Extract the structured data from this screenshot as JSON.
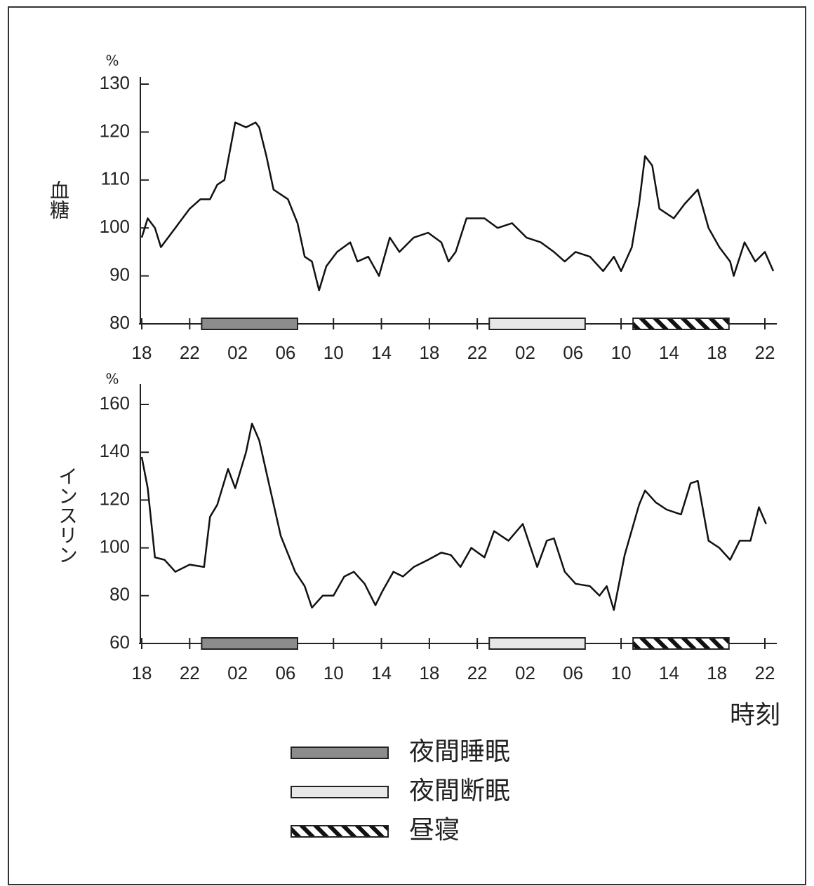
{
  "periods": [
    {
      "name": "夜間睡眠",
      "start": 5,
      "end": 13,
      "style": "dark"
    },
    {
      "name": "夜間断眠",
      "start": 29,
      "end": 37,
      "style": "light"
    },
    {
      "name": "昼寝",
      "start": 41,
      "end": 49,
      "style": "hatch"
    }
  ],
  "chart_data": [
    {
      "type": "line",
      "y_label": "血糖",
      "y_unit": "%",
      "color": "#111111",
      "xlim": [
        0,
        53
      ],
      "ylim": [
        80,
        130
      ],
      "yticks": [
        80,
        90,
        100,
        110,
        120,
        130
      ],
      "xticks": [
        {
          "value": 0,
          "label": "18"
        },
        {
          "value": 4,
          "label": "22"
        },
        {
          "value": 8,
          "label": "02"
        },
        {
          "value": 12,
          "label": "06"
        },
        {
          "value": 16,
          "label": "10"
        },
        {
          "value": 20,
          "label": "14"
        },
        {
          "value": 24,
          "label": "18"
        },
        {
          "value": 28,
          "label": "22"
        },
        {
          "value": 32,
          "label": "02"
        },
        {
          "value": 36,
          "label": "06"
        },
        {
          "value": 40,
          "label": "10"
        },
        {
          "value": 44,
          "label": "14"
        },
        {
          "value": 48,
          "label": "18"
        },
        {
          "value": 52,
          "label": "22"
        }
      ],
      "x": [
        0,
        0.5,
        1.1,
        1.6,
        2.8,
        4,
        4.9,
        5.7,
        6.3,
        6.9,
        7.8,
        8.7,
        9.5,
        9.8,
        10.4,
        11,
        12.2,
        13,
        13.6,
        14.2,
        14.8,
        15.4,
        16.3,
        17.4,
        18,
        18.9,
        19.8,
        20.7,
        21.5,
        22.7,
        23.9,
        25,
        25.6,
        26.2,
        27.1,
        28.6,
        29.7,
        30.9,
        32.1,
        33.3,
        34.4,
        35.3,
        36.2,
        37.4,
        38.5,
        39.4,
        40,
        40.9,
        41.5,
        42,
        42.6,
        43.2,
        44.4,
        45.3,
        46.4,
        47.3,
        48.2,
        49.1,
        49.4,
        50.3,
        51.2,
        52,
        52.7
      ],
      "values": [
        98,
        102,
        100,
        96,
        100,
        104,
        106,
        106,
        109,
        110,
        122,
        121,
        122,
        121,
        115,
        108,
        106,
        101,
        94,
        93,
        87,
        92,
        95,
        97,
        93,
        94,
        90,
        98,
        95,
        98,
        99,
        97,
        93,
        95,
        102,
        102,
        100,
        101,
        98,
        97,
        95,
        93,
        95,
        94,
        91,
        94,
        91,
        96,
        105,
        115,
        113,
        104,
        102,
        105,
        108,
        100,
        96,
        93,
        90,
        97,
        93,
        95,
        91
      ]
    },
    {
      "type": "line",
      "y_label": "インスリン",
      "y_unit": "%",
      "x_label": "時刻",
      "color": "#111111",
      "xlim": [
        0,
        53
      ],
      "ylim": [
        60,
        160
      ],
      "yticks": [
        60,
        80,
        100,
        120,
        140,
        160
      ],
      "xticks": [
        {
          "value": 0,
          "label": "18"
        },
        {
          "value": 4,
          "label": "22"
        },
        {
          "value": 8,
          "label": "02"
        },
        {
          "value": 12,
          "label": "06"
        },
        {
          "value": 16,
          "label": "10"
        },
        {
          "value": 20,
          "label": "14"
        },
        {
          "value": 24,
          "label": "18"
        },
        {
          "value": 28,
          "label": "22"
        },
        {
          "value": 32,
          "label": "02"
        },
        {
          "value": 36,
          "label": "06"
        },
        {
          "value": 40,
          "label": "10"
        },
        {
          "value": 44,
          "label": "14"
        },
        {
          "value": 48,
          "label": "18"
        },
        {
          "value": 52,
          "label": "22"
        }
      ],
      "x": [
        0,
        0.5,
        1.1,
        1.9,
        2.8,
        4,
        5.2,
        5.7,
        6.3,
        7.2,
        7.8,
        8.7,
        9.2,
        9.8,
        10.7,
        11.6,
        12.8,
        13.6,
        14.2,
        15.1,
        16,
        16.9,
        17.7,
        18.6,
        19.5,
        20.1,
        21,
        21.8,
        22.7,
        23.9,
        25,
        25.8,
        26.6,
        27.5,
        28.6,
        29.4,
        30.6,
        31.8,
        33,
        33.8,
        34.4,
        35.3,
        36.2,
        37.4,
        38.2,
        38.8,
        39.4,
        40.3,
        41.5,
        42,
        42.9,
        43.8,
        45,
        45.8,
        46.4,
        47.3,
        48.2,
        49.1,
        49.9,
        50.8,
        51.5,
        52.1
      ],
      "values": [
        138,
        125,
        96,
        95,
        90,
        93,
        92,
        113,
        118,
        133,
        125,
        140,
        152,
        145,
        125,
        105,
        90,
        84,
        75,
        80,
        80,
        88,
        90,
        85,
        76,
        82,
        90,
        88,
        92,
        95,
        98,
        97,
        92,
        100,
        96,
        107,
        103,
        110,
        92,
        103,
        104,
        90,
        85,
        84,
        80,
        84,
        74,
        97,
        118,
        124,
        119,
        116,
        114,
        127,
        128,
        103,
        100,
        95,
        103,
        103,
        117,
        110
      ]
    }
  ]
}
